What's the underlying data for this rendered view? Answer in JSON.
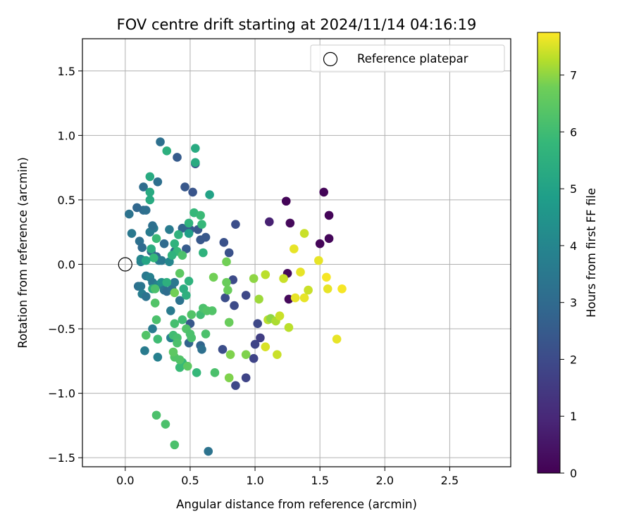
{
  "chart_data": {
    "type": "scatter",
    "title": "FOV centre drift starting at 2024/11/14 04:16:19",
    "xlabel": "Angular distance from reference (arcmin)",
    "ylabel": "Rotation from reference (arcmin)",
    "xlim": [
      -0.33,
      2.97
    ],
    "ylim": [
      -1.57,
      1.75
    ],
    "xticks": [
      {
        "value": 0.0,
        "label": "0.0"
      },
      {
        "value": 0.5,
        "label": "0.5"
      },
      {
        "value": 1.0,
        "label": "1.0"
      },
      {
        "value": 1.5,
        "label": "1.5"
      },
      {
        "value": 2.0,
        "label": "2.0"
      },
      {
        "value": 2.5,
        "label": "2.5"
      }
    ],
    "yticks": [
      {
        "value": 1.5,
        "label": "1.5"
      },
      {
        "value": 1.0,
        "label": "1.0"
      },
      {
        "value": 0.5,
        "label": "0.5"
      },
      {
        "value": 0.0,
        "label": "0.0"
      },
      {
        "value": -0.5,
        "label": "−0.5"
      },
      {
        "value": -1.0,
        "label": "−1.0"
      },
      {
        "value": -1.5,
        "label": "−1.5"
      }
    ],
    "grid": true,
    "legend": {
      "placement": "top-right",
      "entries": [
        {
          "label": "Reference platepar",
          "marker": "open-circle",
          "x": 0.0,
          "y": 0.0
        }
      ]
    },
    "colorbar": {
      "label": "Hours from first FF file",
      "colormap": "viridis",
      "range": [
        0,
        7.75
      ],
      "ticks": [
        {
          "value": 0,
          "label": "0"
        },
        {
          "value": 1,
          "label": "1"
        },
        {
          "value": 2,
          "label": "2"
        },
        {
          "value": 3,
          "label": "3"
        },
        {
          "value": 4,
          "label": "4"
        },
        {
          "value": 5,
          "label": "5"
        },
        {
          "value": 6,
          "label": "6"
        },
        {
          "value": 7,
          "label": "7"
        }
      ]
    },
    "points": [
      {
        "x": 1.24,
        "y": 0.49,
        "c": 0.1
      },
      {
        "x": 1.53,
        "y": 0.56,
        "c": 0.1
      },
      {
        "x": 1.57,
        "y": 0.38,
        "c": 0.1
      },
      {
        "x": 1.57,
        "y": 0.2,
        "c": 0.15
      },
      {
        "x": 1.5,
        "y": 0.16,
        "c": 0.1
      },
      {
        "x": 1.27,
        "y": 0.32,
        "c": 0.2
      },
      {
        "x": 1.25,
        "y": -0.07,
        "c": 0.2
      },
      {
        "x": 1.26,
        "y": -0.27,
        "c": 0.2
      },
      {
        "x": 1.11,
        "y": 0.33,
        "c": 0.8
      },
      {
        "x": 1.04,
        "y": -0.57,
        "c": 1.6
      },
      {
        "x": 1.0,
        "y": -0.62,
        "c": 1.8
      },
      {
        "x": 1.02,
        "y": -0.46,
        "c": 1.9
      },
      {
        "x": 0.93,
        "y": -0.24,
        "c": 1.9
      },
      {
        "x": 0.93,
        "y": -0.88,
        "c": 1.8
      },
      {
        "x": 0.99,
        "y": -0.73,
        "c": 1.8
      },
      {
        "x": 0.85,
        "y": -0.94,
        "c": 1.9
      },
      {
        "x": 0.84,
        "y": -0.32,
        "c": 2.0
      },
      {
        "x": 0.83,
        "y": -0.12,
        "c": 2.0
      },
      {
        "x": 0.77,
        "y": -0.26,
        "c": 2.1
      },
      {
        "x": 0.75,
        "y": -0.66,
        "c": 2.1
      },
      {
        "x": 0.85,
        "y": 0.31,
        "c": 2.1
      },
      {
        "x": 0.76,
        "y": 0.17,
        "c": 2.2
      },
      {
        "x": 0.8,
        "y": 0.09,
        "c": 2.2
      },
      {
        "x": 0.62,
        "y": 0.21,
        "c": 2.4
      },
      {
        "x": 0.58,
        "y": 0.19,
        "c": 2.4
      },
      {
        "x": 0.56,
        "y": 0.27,
        "c": 2.4
      },
      {
        "x": 0.5,
        "y": 0.27,
        "c": 2.5
      },
      {
        "x": 0.47,
        "y": 0.12,
        "c": 2.5
      },
      {
        "x": 0.46,
        "y": 0.6,
        "c": 2.4
      },
      {
        "x": 0.52,
        "y": 0.56,
        "c": 2.3
      },
      {
        "x": 0.54,
        "y": 0.78,
        "c": 2.3
      },
      {
        "x": 0.4,
        "y": 0.83,
        "c": 2.5
      },
      {
        "x": 0.27,
        "y": 0.95,
        "c": 3.2
      },
      {
        "x": 0.25,
        "y": 0.64,
        "c": 3.2
      },
      {
        "x": 0.14,
        "y": 0.6,
        "c": 3.1
      },
      {
        "x": 0.14,
        "y": 0.42,
        "c": 3.1
      },
      {
        "x": 0.16,
        "y": 0.42,
        "c": 3.2
      },
      {
        "x": 0.09,
        "y": 0.44,
        "c": 2.9
      },
      {
        "x": 0.03,
        "y": 0.39,
        "c": 3.3
      },
      {
        "x": 0.05,
        "y": 0.24,
        "c": 3.5
      },
      {
        "x": 0.11,
        "y": 0.18,
        "c": 3.2
      },
      {
        "x": 0.13,
        "y": 0.13,
        "c": 3.0
      },
      {
        "x": 0.2,
        "y": 0.1,
        "c": 3.0
      },
      {
        "x": 0.24,
        "y": 0.06,
        "c": 2.9
      },
      {
        "x": 0.3,
        "y": 0.16,
        "c": 3.0
      },
      {
        "x": 0.38,
        "y": 0.1,
        "c": 3.2
      },
      {
        "x": 0.44,
        "y": 0.28,
        "c": 2.8
      },
      {
        "x": 0.34,
        "y": 0.27,
        "c": 3.6
      },
      {
        "x": 0.22,
        "y": 0.28,
        "c": 3.6
      },
      {
        "x": 0.19,
        "y": 0.25,
        "c": 3.6
      },
      {
        "x": 0.21,
        "y": 0.3,
        "c": 3.2
      },
      {
        "x": 0.12,
        "y": 0.02,
        "c": 3.8
      },
      {
        "x": 0.12,
        "y": 0.04,
        "c": 4.0
      },
      {
        "x": 0.14,
        "y": 0.03,
        "c": 3.9
      },
      {
        "x": 0.26,
        "y": 0.03,
        "c": 3.8
      },
      {
        "x": 0.28,
        "y": 0.03,
        "c": 3.5
      },
      {
        "x": 0.34,
        "y": 0.02,
        "c": 4.0
      },
      {
        "x": 0.1,
        "y": -0.17,
        "c": 3.2
      },
      {
        "x": 0.12,
        "y": -0.17,
        "c": 3.4
      },
      {
        "x": 0.13,
        "y": -0.23,
        "c": 3.7
      },
      {
        "x": 0.16,
        "y": -0.25,
        "c": 3.3
      },
      {
        "x": 0.16,
        "y": -0.09,
        "c": 3.5
      },
      {
        "x": 0.19,
        "y": -0.1,
        "c": 3.8
      },
      {
        "x": 0.21,
        "y": -0.14,
        "c": 3.5
      },
      {
        "x": 0.25,
        "y": -0.16,
        "c": 3.9
      },
      {
        "x": 0.28,
        "y": -0.14,
        "c": 4.4
      },
      {
        "x": 0.3,
        "y": -0.2,
        "c": 3.4
      },
      {
        "x": 0.32,
        "y": -0.21,
        "c": 3.1
      },
      {
        "x": 0.36,
        "y": -0.19,
        "c": 3.2
      },
      {
        "x": 0.38,
        "y": -0.14,
        "c": 3.5
      },
      {
        "x": 0.42,
        "y": -0.28,
        "c": 3.3
      },
      {
        "x": 0.35,
        "y": -0.36,
        "c": 3.6
      },
      {
        "x": 0.21,
        "y": -0.5,
        "c": 3.6
      },
      {
        "x": 0.15,
        "y": -0.67,
        "c": 3.6
      },
      {
        "x": 0.25,
        "y": -0.72,
        "c": 3.8
      },
      {
        "x": 0.35,
        "y": -0.57,
        "c": 3.8
      },
      {
        "x": 0.49,
        "y": -0.61,
        "c": 2.8
      },
      {
        "x": 0.5,
        "y": -0.46,
        "c": 2.4
      },
      {
        "x": 0.58,
        "y": -0.63,
        "c": 2.8
      },
      {
        "x": 0.59,
        "y": -0.66,
        "c": 3.2
      },
      {
        "x": 0.64,
        "y": -1.45,
        "c": 3.3
      },
      {
        "x": 0.6,
        "y": 0.09,
        "c": 5.6
      },
      {
        "x": 0.53,
        "y": 0.4,
        "c": 5.8
      },
      {
        "x": 0.58,
        "y": 0.38,
        "c": 5.9
      },
      {
        "x": 0.59,
        "y": 0.31,
        "c": 5.8
      },
      {
        "x": 0.49,
        "y": 0.24,
        "c": 4.9
      },
      {
        "x": 0.49,
        "y": 0.32,
        "c": 5.6
      },
      {
        "x": 0.41,
        "y": 0.23,
        "c": 5.6
      },
      {
        "x": 0.38,
        "y": 0.16,
        "c": 5.6
      },
      {
        "x": 0.4,
        "y": 0.1,
        "c": 5.8
      },
      {
        "x": 0.44,
        "y": 0.07,
        "c": 6.2
      },
      {
        "x": 0.36,
        "y": 0.07,
        "c": 5.6
      },
      {
        "x": 0.24,
        "y": 0.2,
        "c": 5.9
      },
      {
        "x": 0.2,
        "y": 0.12,
        "c": 5.4
      },
      {
        "x": 0.22,
        "y": 0.05,
        "c": 5.8
      },
      {
        "x": 0.16,
        "y": 0.03,
        "c": 5.1
      },
      {
        "x": 0.19,
        "y": 0.5,
        "c": 5.3
      },
      {
        "x": 0.19,
        "y": 0.56,
        "c": 5.3
      },
      {
        "x": 0.19,
        "y": 0.68,
        "c": 5.3
      },
      {
        "x": 0.32,
        "y": 0.88,
        "c": 5.5
      },
      {
        "x": 0.54,
        "y": 0.9,
        "c": 5.3
      },
      {
        "x": 0.54,
        "y": 0.79,
        "c": 5.3
      },
      {
        "x": 0.65,
        "y": 0.54,
        "c": 5.0
      },
      {
        "x": 0.21,
        "y": -0.19,
        "c": 5.4
      },
      {
        "x": 0.23,
        "y": -0.19,
        "c": 6.2
      },
      {
        "x": 0.23,
        "y": -0.3,
        "c": 6.3
      },
      {
        "x": 0.32,
        "y": -0.14,
        "c": 5.5
      },
      {
        "x": 0.42,
        "y": -0.07,
        "c": 6.5
      },
      {
        "x": 0.45,
        "y": -0.19,
        "c": 5.4
      },
      {
        "x": 0.47,
        "y": -0.24,
        "c": 5.5
      },
      {
        "x": 0.49,
        "y": -0.13,
        "c": 5.6
      },
      {
        "x": 0.38,
        "y": -0.22,
        "c": 6.8
      },
      {
        "x": 0.44,
        "y": -0.43,
        "c": 6.0
      },
      {
        "x": 0.47,
        "y": -0.5,
        "c": 6.3
      },
      {
        "x": 0.51,
        "y": -0.39,
        "c": 6.3
      },
      {
        "x": 0.38,
        "y": -0.46,
        "c": 6.1
      },
      {
        "x": 0.24,
        "y": -0.43,
        "c": 6.2
      },
      {
        "x": 0.16,
        "y": -0.55,
        "c": 6.3
      },
      {
        "x": 0.25,
        "y": -0.58,
        "c": 6.0
      },
      {
        "x": 0.37,
        "y": -0.55,
        "c": 6.0
      },
      {
        "x": 0.4,
        "y": -0.57,
        "c": 6.1
      },
      {
        "x": 0.4,
        "y": -0.61,
        "c": 6.2
      },
      {
        "x": 0.5,
        "y": -0.54,
        "c": 6.2
      },
      {
        "x": 0.51,
        "y": -0.57,
        "c": 6.2
      },
      {
        "x": 0.58,
        "y": -0.39,
        "c": 6.0
      },
      {
        "x": 0.6,
        "y": -0.34,
        "c": 6.2
      },
      {
        "x": 0.63,
        "y": -0.36,
        "c": 6.3
      },
      {
        "x": 0.67,
        "y": -0.36,
        "c": 6.3
      },
      {
        "x": 0.62,
        "y": -0.54,
        "c": 6.2
      },
      {
        "x": 0.55,
        "y": -0.84,
        "c": 5.8
      },
      {
        "x": 0.44,
        "y": -0.76,
        "c": 5.8
      },
      {
        "x": 0.42,
        "y": -0.8,
        "c": 5.9
      },
      {
        "x": 0.38,
        "y": -0.72,
        "c": 6.3
      },
      {
        "x": 0.37,
        "y": -0.68,
        "c": 6.5
      },
      {
        "x": 0.42,
        "y": -0.74,
        "c": 6.3
      },
      {
        "x": 0.48,
        "y": -0.79,
        "c": 6.5
      },
      {
        "x": 0.69,
        "y": -0.84,
        "c": 6.2
      },
      {
        "x": 0.24,
        "y": -1.17,
        "c": 6.2
      },
      {
        "x": 0.31,
        "y": -1.24,
        "c": 6.2
      },
      {
        "x": 0.38,
        "y": -1.4,
        "c": 6.2
      },
      {
        "x": 0.68,
        "y": -0.1,
        "c": 6.8
      },
      {
        "x": 0.78,
        "y": 0.02,
        "c": 6.8
      },
      {
        "x": 0.78,
        "y": -0.14,
        "c": 6.7
      },
      {
        "x": 0.79,
        "y": -0.2,
        "c": 6.7
      },
      {
        "x": 0.8,
        "y": -0.45,
        "c": 6.7
      },
      {
        "x": 0.81,
        "y": -0.7,
        "c": 6.9
      },
      {
        "x": 0.8,
        "y": -0.88,
        "c": 6.9
      },
      {
        "x": 0.93,
        "y": -0.7,
        "c": 6.9
      },
      {
        "x": 0.99,
        "y": -0.11,
        "c": 7.0
      },
      {
        "x": 1.03,
        "y": -0.27,
        "c": 7.1
      },
      {
        "x": 1.08,
        "y": -0.08,
        "c": 7.3
      },
      {
        "x": 1.1,
        "y": -0.43,
        "c": 7.3
      },
      {
        "x": 1.12,
        "y": -0.42,
        "c": 7.0
      },
      {
        "x": 1.16,
        "y": -0.44,
        "c": 7.2
      },
      {
        "x": 1.19,
        "y": -0.4,
        "c": 7.4
      },
      {
        "x": 1.17,
        "y": -0.7,
        "c": 7.4
      },
      {
        "x": 1.08,
        "y": -0.64,
        "c": 7.5
      },
      {
        "x": 1.22,
        "y": -0.11,
        "c": 7.4
      },
      {
        "x": 1.26,
        "y": -0.49,
        "c": 7.3
      },
      {
        "x": 1.31,
        "y": -0.26,
        "c": 7.6
      },
      {
        "x": 1.3,
        "y": 0.12,
        "c": 7.6
      },
      {
        "x": 1.35,
        "y": -0.06,
        "c": 7.6
      },
      {
        "x": 1.38,
        "y": 0.24,
        "c": 7.4
      },
      {
        "x": 1.38,
        "y": -0.26,
        "c": 7.6
      },
      {
        "x": 1.41,
        "y": -0.2,
        "c": 7.4
      },
      {
        "x": 1.49,
        "y": 0.03,
        "c": 7.6
      },
      {
        "x": 1.55,
        "y": -0.1,
        "c": 7.7
      },
      {
        "x": 1.56,
        "y": -0.19,
        "c": 7.6
      },
      {
        "x": 1.67,
        "y": -0.19,
        "c": 7.7
      },
      {
        "x": 1.63,
        "y": -0.58,
        "c": 7.6
      }
    ]
  }
}
